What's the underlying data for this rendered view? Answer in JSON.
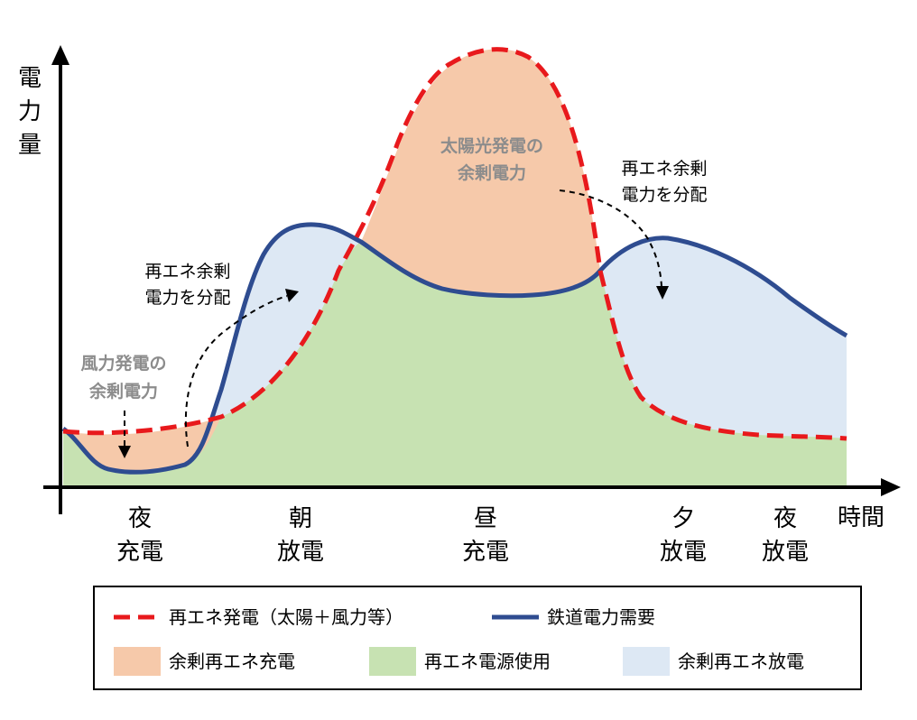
{
  "axes": {
    "y_label_chars": [
      "電",
      "力",
      "量"
    ],
    "x_label": "時間"
  },
  "periods": [
    {
      "line1": "夜",
      "line2": "充電"
    },
    {
      "line1": "朝",
      "line2": "放電"
    },
    {
      "line1": "昼",
      "line2": "充電"
    },
    {
      "line1": "夕",
      "line2": "放電"
    },
    {
      "line1": "夜",
      "line2": "放電"
    }
  ],
  "annotations": {
    "solar_surplus": [
      "太陽光発電の",
      "余剰電力"
    ],
    "wind_surplus": [
      "風力発電の",
      "余剰電力"
    ],
    "distribute_left": [
      "再エネ余剰",
      "電力を分配"
    ],
    "distribute_right": [
      "再エネ余剰",
      "電力を分配"
    ]
  },
  "legend": {
    "renewable_generation": "再エネ発電（太陽＋風力等）",
    "railway_demand": "鉄道電力需要",
    "surplus_charge": "余剰再エネ充電",
    "renewable_use": "再エネ電源使用",
    "surplus_discharge": "余剰再エネ放電"
  },
  "colors": {
    "generation_line": "#e8191c",
    "demand_line": "#2e4c90",
    "surplus_charge_fill": "#f6c9aa",
    "renewable_use_fill": "#c7e2b2",
    "surplus_discharge_fill": "#dde8f4"
  }
}
